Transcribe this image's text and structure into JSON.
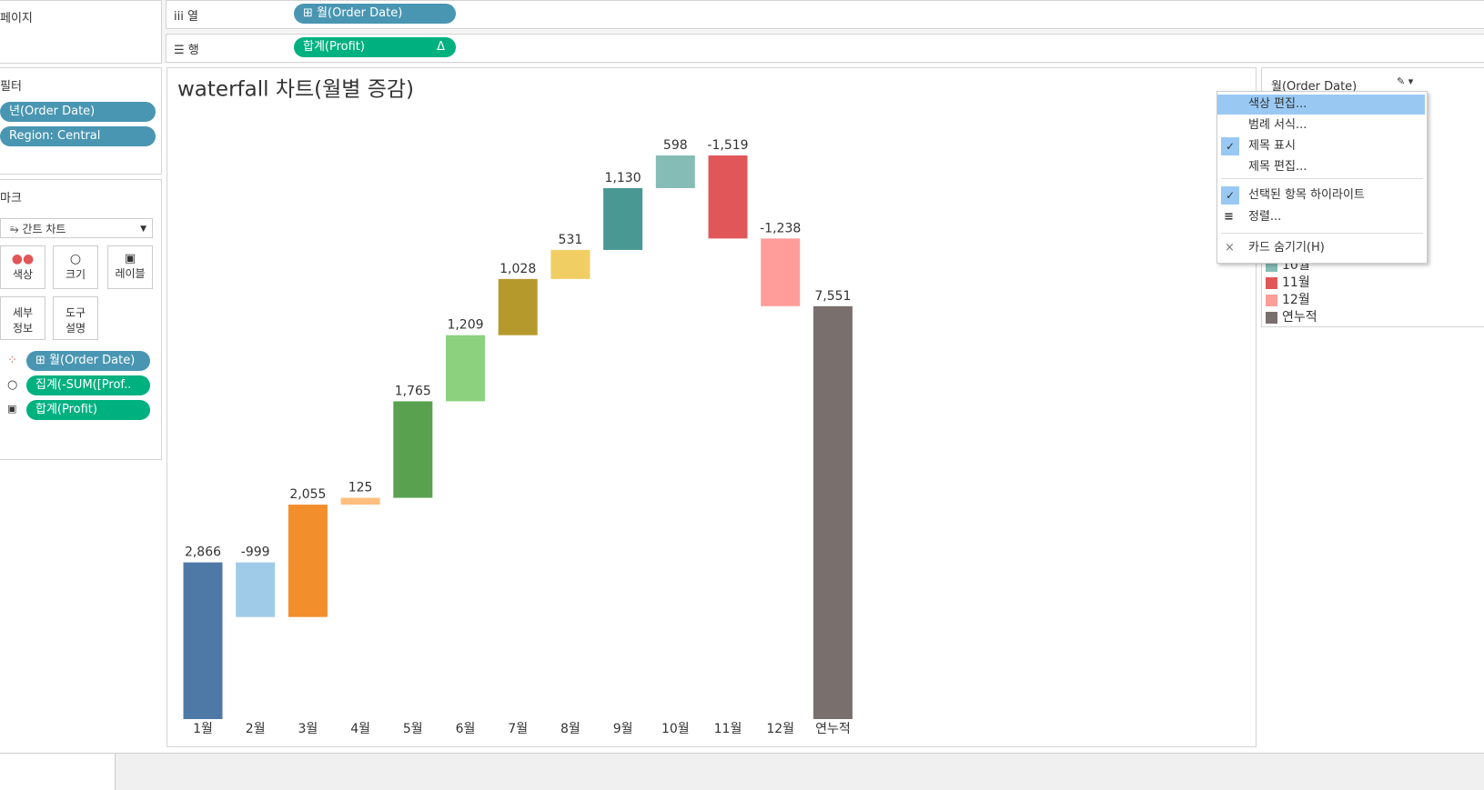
{
  "shelves": {
    "pages": "페이지",
    "columns": {
      "label": "열",
      "pill": "월(Order Date)"
    },
    "rows": {
      "label": "행",
      "pill": "합계(Profit)",
      "pill_icon": "Δ"
    }
  },
  "filters": {
    "title": "필터",
    "pills": [
      "년(Order Date)",
      "Region: Central"
    ]
  },
  "marks": {
    "title": "마크",
    "mark_type": "간트 차트",
    "buttons": [
      "색상",
      "크기",
      "레이블",
      "세부 정보",
      "도구 설명"
    ],
    "pills": [
      "월(Order Date)",
      "집계(-SUM([Prof..",
      "합계(Profit)"
    ]
  },
  "chart_data": {
    "type": "waterfall",
    "title": "waterfall 차트(월별 증감)",
    "categories": [
      "1월",
      "2월",
      "3월",
      "4월",
      "5월",
      "6월",
      "7월",
      "8월",
      "9월",
      "10월",
      "11월",
      "12월",
      "연누적"
    ],
    "values": [
      2866,
      -999,
      2055,
      125,
      1765,
      1209,
      1028,
      531,
      1130,
      598,
      -1519,
      -1238,
      7551
    ],
    "value_labels": [
      "2,866",
      "-999",
      "2,055",
      "125",
      "1,765",
      "1,209",
      "1,028",
      "531",
      "1,130",
      "598",
      "-1,519",
      "-1,238",
      "7,551"
    ],
    "colors": [
      "#4e79a7",
      "#a0cbe8",
      "#f28e2b",
      "#ffbe7d",
      "#59a14f",
      "#8cd17d",
      "#b6992d",
      "#f1ce63",
      "#499894",
      "#86bcb6",
      "#e15759",
      "#ff9d9a",
      "#79706e"
    ]
  },
  "legend": {
    "title": "월(Order Date)"
  },
  "menu": {
    "items": [
      {
        "label": "색상 편집...",
        "checked": false
      },
      {
        "label": "범례 서식...",
        "checked": false
      },
      {
        "label": "제목 표시",
        "checked": true
      },
      {
        "label": "제목 편집...",
        "checked": false
      },
      {
        "label": "선택된 항목 하이라이트",
        "checked": true
      },
      {
        "label": "정렬...",
        "checked": false
      },
      {
        "label": "카드 숨기기(H)",
        "checked": false
      }
    ]
  }
}
